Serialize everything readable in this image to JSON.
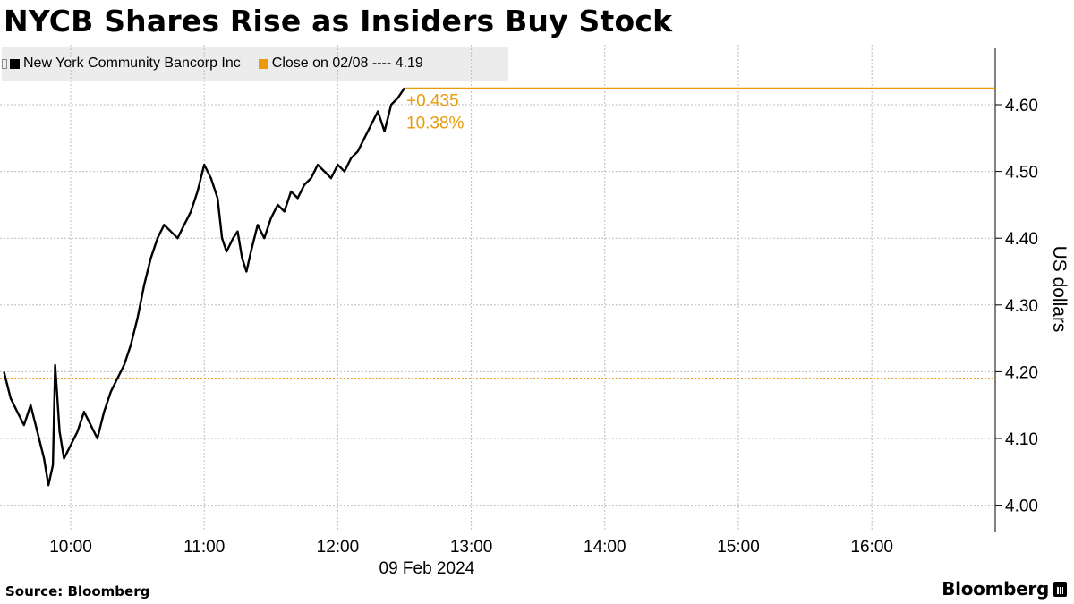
{
  "title": "NYCB Shares Rise as Insiders Buy Stock",
  "source": "Source: Bloomberg",
  "brand": "Bloomberg",
  "colors": {
    "series": "#000000",
    "reference": "#e89b0c",
    "grid": "#bdbdbd",
    "legend_bg": "#ececec"
  },
  "chart_data": {
    "type": "line",
    "title": "NYCB Shares Rise as Insiders Buy Stock",
    "xlabel": "09 Feb 2024",
    "ylabel": "US dollars",
    "ylim": [
      3.96,
      4.68
    ],
    "xlim": [
      "09:30",
      "16:55"
    ],
    "grid": true,
    "legend_position": "top-left",
    "yticks": [
      "4.00",
      "4.10",
      "4.20",
      "4.30",
      "4.40",
      "4.50",
      "4.60"
    ],
    "xticks": [
      "10:00",
      "11:00",
      "12:00",
      "13:00",
      "14:00",
      "15:00",
      "16:00"
    ],
    "series": [
      {
        "name": "New York Community Bancorp Inc",
        "color": "#000000",
        "x": [
          "09:30",
          "09:33",
          "09:36",
          "09:39",
          "09:42",
          "09:45",
          "09:48",
          "09:50",
          "09:52",
          "09:53",
          "09:55",
          "09:57",
          "10:00",
          "10:03",
          "10:06",
          "10:09",
          "10:12",
          "10:15",
          "10:18",
          "10:21",
          "10:24",
          "10:27",
          "10:30",
          "10:33",
          "10:36",
          "10:39",
          "10:42",
          "10:45",
          "10:48",
          "10:51",
          "10:54",
          "10:57",
          "11:00",
          "11:03",
          "11:06",
          "11:08",
          "11:10",
          "11:13",
          "11:15",
          "11:17",
          "11:19",
          "11:21",
          "11:24",
          "11:27",
          "11:30",
          "11:33",
          "11:36",
          "11:39",
          "11:42",
          "11:45",
          "11:48",
          "11:51",
          "11:54",
          "11:57",
          "12:00",
          "12:03",
          "12:06",
          "12:09",
          "12:12",
          "12:15",
          "12:18",
          "12:21",
          "12:24",
          "12:27",
          "12:30"
        ],
        "values": [
          4.2,
          4.16,
          4.14,
          4.12,
          4.15,
          4.11,
          4.07,
          4.03,
          4.06,
          4.21,
          4.11,
          4.07,
          4.09,
          4.11,
          4.14,
          4.12,
          4.1,
          4.14,
          4.17,
          4.19,
          4.21,
          4.24,
          4.28,
          4.33,
          4.37,
          4.4,
          4.42,
          4.41,
          4.4,
          4.42,
          4.44,
          4.47,
          4.51,
          4.49,
          4.46,
          4.4,
          4.38,
          4.4,
          4.41,
          4.37,
          4.35,
          4.38,
          4.42,
          4.4,
          4.43,
          4.45,
          4.44,
          4.47,
          4.46,
          4.48,
          4.49,
          4.51,
          4.5,
          4.49,
          4.51,
          4.5,
          4.52,
          4.53,
          4.55,
          4.57,
          4.59,
          4.56,
          4.6,
          4.61,
          4.625
        ]
      }
    ],
    "reference_lines": [
      {
        "name": "Close on 02/08",
        "value": 4.19,
        "label": "Close on 02/08 ---- 4.19",
        "color": "#e89b0c"
      }
    ],
    "annotations": [
      {
        "text": "+0.435",
        "color": "#e89b0c"
      },
      {
        "text": "10.38%",
        "color": "#e89b0c"
      }
    ]
  }
}
